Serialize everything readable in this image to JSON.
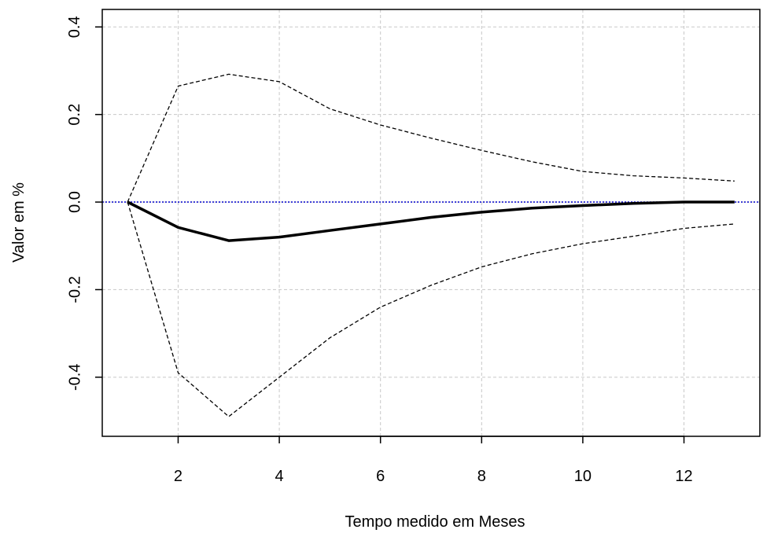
{
  "chart_data": {
    "type": "line",
    "title": "",
    "xlabel": "Tempo medido em Meses",
    "ylabel": "Valor em %",
    "xlim": [
      0.5,
      13.5
    ],
    "ylim": [
      -0.535,
      0.44
    ],
    "x_ticks": [
      2,
      4,
      6,
      8,
      10,
      12
    ],
    "x_tick_labels": [
      "2",
      "4",
      "6",
      "8",
      "10",
      "12"
    ],
    "y_ticks": [
      -0.4,
      -0.2,
      0.0,
      0.2,
      0.4
    ],
    "y_tick_labels": [
      "-0.4",
      "-0.2",
      "0.0",
      "0.2",
      "0.4"
    ],
    "grid": true,
    "reference_line": {
      "y": 0.0,
      "color": "#0000cc",
      "style": "dotted"
    },
    "x": [
      1,
      2,
      3,
      4,
      5,
      6,
      7,
      8,
      9,
      10,
      11,
      12,
      13
    ],
    "series": [
      {
        "style": "solid-bold",
        "color": "#000000",
        "values": [
          0.0,
          -0.058,
          -0.088,
          -0.08,
          -0.065,
          -0.05,
          -0.035,
          -0.023,
          -0.014,
          -0.008,
          -0.003,
          0.0,
          0.0
        ]
      },
      {
        "style": "dashed",
        "color": "#000000",
        "values": [
          0.0,
          0.265,
          0.292,
          0.275,
          0.213,
          0.176,
          0.146,
          0.118,
          0.092,
          0.07,
          0.06,
          0.055,
          0.048
        ]
      },
      {
        "style": "dashed",
        "color": "#000000",
        "values": [
          0.0,
          -0.39,
          -0.49,
          -0.4,
          -0.31,
          -0.24,
          -0.19,
          -0.148,
          -0.118,
          -0.095,
          -0.078,
          -0.06,
          -0.05
        ]
      }
    ]
  }
}
